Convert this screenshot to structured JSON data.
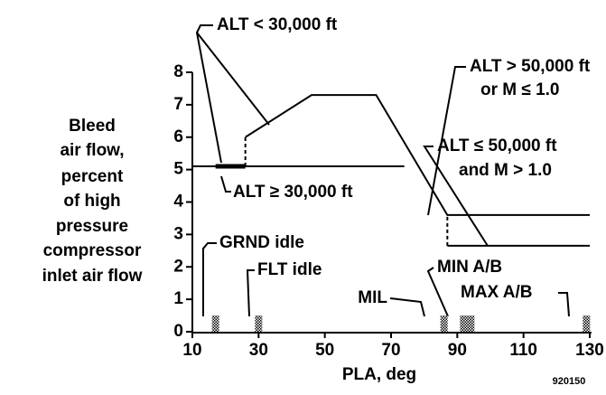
{
  "chart_data": {
    "type": "line",
    "ylabel": [
      "Bleed",
      "air flow,",
      "percent",
      "of high",
      "pressure",
      "compressor",
      "inlet air flow"
    ],
    "xlabel": "PLA, deg",
    "figure_id": "920150",
    "xlim": [
      10,
      130
    ],
    "xticks": [
      10,
      30,
      50,
      70,
      90,
      110,
      130
    ],
    "ylim": [
      0,
      8
    ],
    "yticks": [
      0,
      1,
      2,
      3,
      4,
      5,
      6,
      7,
      8
    ],
    "series": [
      {
        "color": "#000000",
        "style": "solid",
        "width": 2,
        "x": [
          26,
          46,
          65.5,
          87,
          130
        ],
        "values": [
          6.0,
          7.3,
          7.3,
          3.6,
          3.6
        ]
      },
      {
        "color": "#000000",
        "style": "solid",
        "width": 2,
        "x": [
          10,
          74
        ],
        "values": [
          5.1,
          5.1
        ]
      },
      {
        "color": "#000000",
        "style": "solid",
        "width": 5,
        "x": [
          17,
          26
        ],
        "values": [
          5.1,
          5.1
        ]
      },
      {
        "color": "#000000",
        "style": "solid",
        "width": 2,
        "x": [
          87,
          130
        ],
        "values": [
          2.65,
          2.65
        ]
      },
      {
        "color": "#000000",
        "style": "dashed",
        "width": 2,
        "x": [
          26,
          26
        ],
        "values": [
          5.1,
          6.0
        ]
      },
      {
        "color": "#000000",
        "style": "dashed",
        "width": 2,
        "x": [
          87,
          87
        ],
        "values": [
          2.65,
          3.6
        ]
      }
    ],
    "markers": {
      "x": [
        17,
        30,
        86,
        93,
        129
      ],
      "values": [
        0.5,
        0.5,
        0.5,
        0.5,
        0.5
      ]
    },
    "annotations": [
      "ALT < 30,000 ft",
      "ALT ≥ 30,000 ft",
      "ALT > 50,000 ft",
      "or M ≤ 1.0",
      "ALT ≤ 50,000 ft",
      "and M > 1.0",
      "GRND idle",
      "FLT idle",
      "MIL",
      "MIN A/B",
      "MAX A/B"
    ]
  }
}
